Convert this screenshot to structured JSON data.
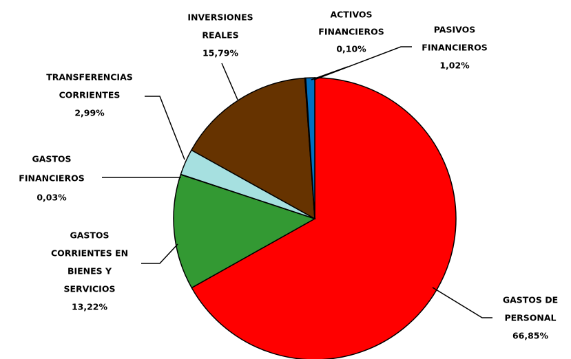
{
  "chart_data": {
    "type": "pie",
    "categories": [
      [
        "GASTOS DE",
        "PERSONAL"
      ],
      [
        "GASTOS",
        "CORRIENTES EN",
        "BIENES Y",
        "SERVICIOS"
      ],
      [
        "GASTOS",
        "FINANCIEROS"
      ],
      [
        "TRANSFERENCIAS",
        "CORRIENTES"
      ],
      [
        "INVERSIONES",
        "REALES"
      ],
      [
        "ACTIVOS",
        "FINANCIEROS"
      ],
      [
        "PASIVOS",
        "FINANCIEROS"
      ]
    ],
    "values": [
      66.85,
      13.22,
      0.03,
      2.99,
      15.79,
      0.1,
      1.02
    ],
    "value_labels": [
      "66,85%",
      "13,22%",
      "0,03%",
      "2,99%",
      "15,79%",
      "0,10%",
      "1,02%"
    ],
    "colors": [
      "#ff0000",
      "#339933",
      "#003366",
      "#a6e0e0",
      "#663300",
      "#99ccff",
      "#0070c0"
    ]
  }
}
